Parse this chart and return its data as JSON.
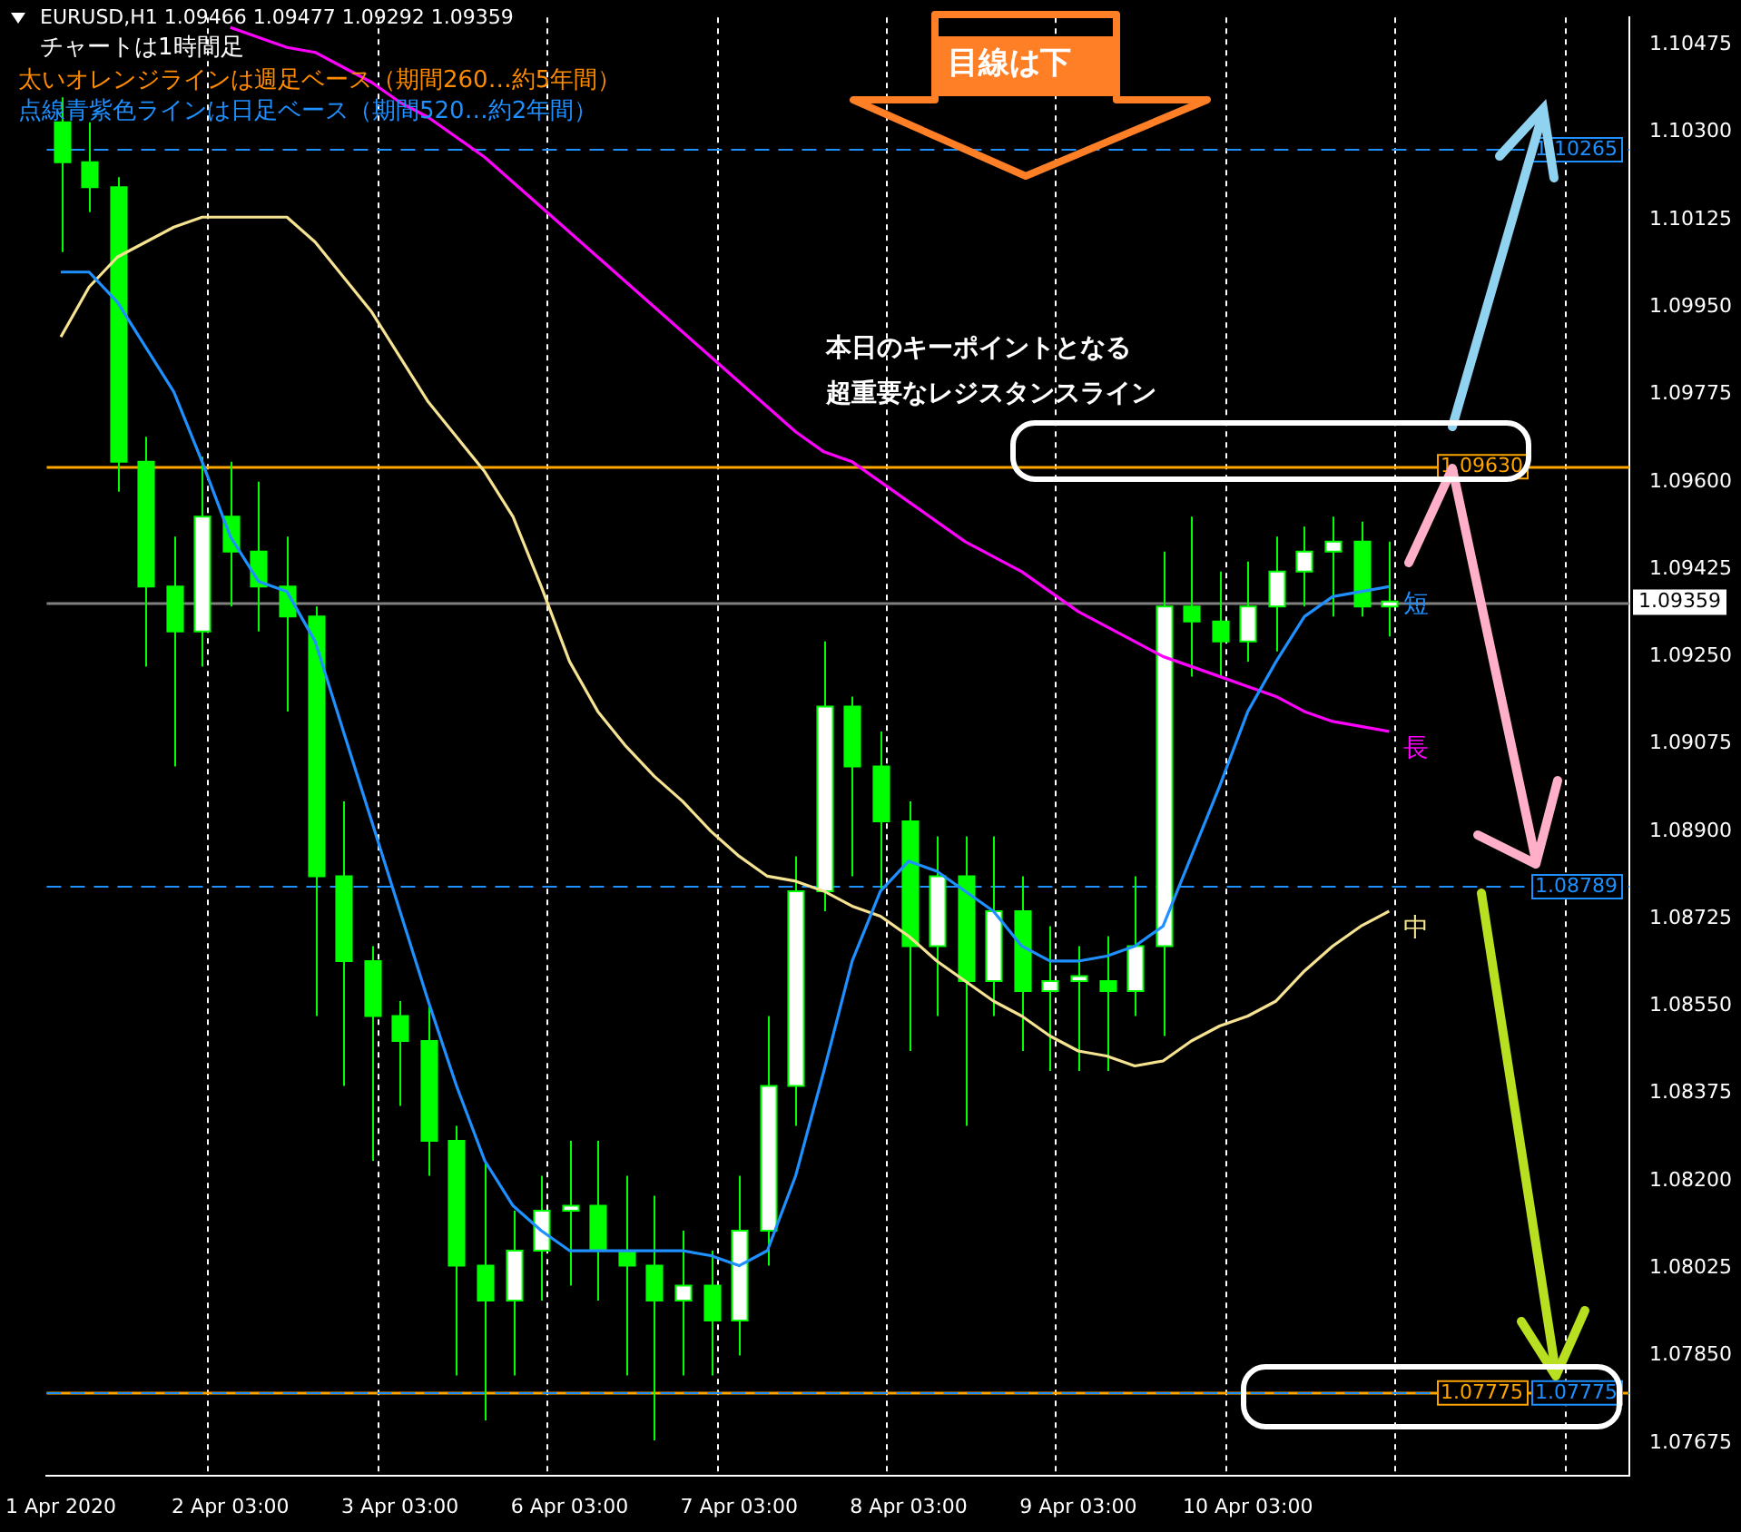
{
  "chart_data": {
    "type": "candlestick",
    "color": "#00ff00",
    "colors": [
      "#00ff00",
      "#00ff00",
      "#00ff00",
      "#00ff00",
      "#00ff00",
      "#ffffff",
      "#00ff00",
      "#00ff00",
      "#00ff00",
      "#00ff00",
      "#00ff00",
      "#00ff00",
      "#00ff00",
      "#00ff00",
      "#00ff00",
      "#00ff00",
      "#ffffff",
      "#ffffff",
      "#ffffff",
      "#00ff00",
      "#00ff00",
      "#00ff00",
      "#ffffff",
      "#00ff00",
      "#ffffff",
      "#ffffff",
      "#ffffff",
      "#ffffff",
      "#00ff00",
      "#00ff00",
      "#00ff00",
      "#ffffff",
      "#00ff00",
      "#ffffff",
      "#00ff00",
      "#ffffff",
      "#ffffff",
      "#00ff00",
      "#ffffff",
      "#ffffff",
      "#00ff00",
      "#00ff00",
      "#ffffff",
      "#ffffff",
      "#ffffff",
      "#ffffff",
      "#00ff00",
      "#ffffff",
      null,
      null,
      null,
      null,
      null,
      null,
      null,
      null
    ],
    "categories": [
      "1 Apr 2020",
      null,
      null,
      null,
      null,
      null,
      "2 Apr 03:00",
      null,
      null,
      null,
      null,
      null,
      "3 Apr 03:00",
      null,
      null,
      null,
      null,
      null,
      "6 Apr 03:00",
      null,
      null,
      null,
      null,
      null,
      "7 Apr 03:00",
      null,
      null,
      null,
      null,
      null,
      "8 Apr 03:00",
      null,
      null,
      null,
      null,
      null,
      "9 Apr 03:00",
      null,
      null,
      null,
      null,
      null,
      "10 Apr 03:00",
      null,
      null,
      null,
      null,
      null,
      null,
      null,
      null,
      null,
      null,
      null,
      null,
      null
    ],
    "ohlc": [
      [
        1.1032,
        1.1037,
        1.1006,
        1.1024
      ],
      [
        1.1024,
        1.1032,
        1.1014,
        1.1019
      ],
      [
        1.1019,
        1.1021,
        1.0958,
        1.0964
      ],
      [
        1.0964,
        1.0969,
        1.0923,
        1.0939
      ],
      [
        1.0939,
        1.0949,
        1.0903,
        1.093
      ],
      [
        1.093,
        1.0965,
        1.0923,
        1.0953
      ],
      [
        1.0953,
        1.0964,
        1.0935,
        1.0946
      ],
      [
        1.0946,
        1.096,
        1.093,
        1.0939
      ],
      [
        1.0939,
        1.0949,
        1.0914,
        1.0933
      ],
      [
        1.0933,
        1.0935,
        1.0853,
        1.0881
      ],
      [
        1.0881,
        1.0896,
        1.0839,
        1.0864
      ],
      [
        1.0864,
        1.0867,
        1.0824,
        1.0853
      ],
      [
        1.0853,
        1.0856,
        1.0835,
        1.0848
      ],
      [
        1.0848,
        1.0855,
        1.0821,
        1.0828
      ],
      [
        1.0828,
        1.0831,
        1.0781,
        1.0803
      ],
      [
        1.0803,
        1.0824,
        1.0772,
        1.0796
      ],
      [
        1.0796,
        1.0814,
        1.0781,
        1.0806
      ],
      [
        1.0806,
        1.0821,
        1.0796,
        1.0814
      ],
      [
        1.0814,
        1.0828,
        1.0799,
        1.0815
      ],
      [
        1.0815,
        1.0828,
        1.0796,
        1.0806
      ],
      [
        1.0806,
        1.0821,
        1.0781,
        1.0803
      ],
      [
        1.0803,
        1.0817,
        1.0768,
        1.0796
      ],
      [
        1.0796,
        1.081,
        1.0781,
        1.0799
      ],
      [
        1.0799,
        1.0806,
        1.0781,
        1.0792
      ],
      [
        1.0792,
        1.0821,
        1.0785,
        1.081
      ],
      [
        1.081,
        1.0853,
        1.0803,
        1.0839
      ],
      [
        1.0839,
        1.0885,
        1.0831,
        1.0878
      ],
      [
        1.0878,
        1.0928,
        1.0874,
        1.0915
      ],
      [
        1.0915,
        1.0917,
        1.0881,
        1.0903
      ],
      [
        1.0903,
        1.091,
        1.0878,
        1.0892
      ],
      [
        1.0892,
        1.0896,
        1.0846,
        1.0867
      ],
      [
        1.0867,
        1.0889,
        1.0853,
        1.0881
      ],
      [
        1.0881,
        1.0889,
        1.0831,
        1.086
      ],
      [
        1.086,
        1.0889,
        1.0853,
        1.0874
      ],
      [
        1.0874,
        1.0881,
        1.0846,
        1.0858
      ],
      [
        1.0858,
        1.0871,
        1.0842,
        1.086
      ],
      [
        1.086,
        1.0867,
        1.0842,
        1.0861
      ],
      [
        1.086,
        1.0869,
        1.0842,
        1.0858
      ],
      [
        1.0858,
        1.0881,
        1.0853,
        1.0867
      ],
      [
        1.0867,
        1.0946,
        1.0849,
        1.0935
      ],
      [
        1.0935,
        1.0953,
        1.0921,
        1.0932
      ],
      [
        1.0932,
        1.0942,
        1.0921,
        1.0928
      ],
      [
        1.0928,
        1.0944,
        1.0924,
        1.0935
      ],
      [
        1.0935,
        1.0949,
        1.0926,
        1.0942
      ],
      [
        1.0942,
        1.0951,
        1.0935,
        1.0946
      ],
      [
        1.0946,
        1.0953,
        1.0933,
        1.0948
      ],
      [
        1.0948,
        1.0952,
        1.0933,
        1.0935
      ],
      [
        1.0935,
        1.0948,
        1.0929,
        1.0936
      ],
      null,
      null,
      null,
      null,
      null,
      null,
      null,
      null
    ],
    "series": [
      {
        "name": "短",
        "type": "line",
        "color": "#1e90ff",
        "values": [
          1.1002,
          1.1002,
          1.0996,
          1.0987,
          1.0978,
          1.0964,
          1.0949,
          1.094,
          1.0938,
          1.0928,
          1.091,
          1.0892,
          1.0874,
          1.0856,
          1.0839,
          1.0824,
          1.0815,
          1.081,
          1.0806,
          1.0806,
          1.0806,
          1.0806,
          1.0806,
          1.0805,
          1.0803,
          1.0806,
          1.0821,
          1.0842,
          1.0864,
          1.0878,
          1.0884,
          1.0882,
          1.0878,
          1.0874,
          1.0867,
          1.0864,
          1.0864,
          1.0865,
          1.0867,
          1.0871,
          1.0885,
          1.0899,
          1.0914,
          1.0924,
          1.0933,
          1.0937,
          1.0938,
          1.0939,
          null,
          null,
          null,
          null,
          null,
          null,
          null,
          null
        ]
      },
      {
        "name": "長",
        "type": "line",
        "color": "#ff00ff",
        "values": [
          null,
          null,
          null,
          null,
          null,
          null,
          1.1051,
          1.1049,
          1.1047,
          1.1046,
          1.1043,
          1.104,
          1.1036,
          1.1033,
          1.1029,
          1.1025,
          1.102,
          1.1015,
          1.101,
          1.1005,
          1.1,
          1.0995,
          1.099,
          1.0985,
          1.098,
          1.0975,
          1.097,
          1.0966,
          1.0964,
          1.096,
          1.0956,
          1.0952,
          1.0948,
          1.0945,
          1.0942,
          1.0938,
          1.0934,
          1.0931,
          1.0928,
          1.0925,
          1.0923,
          1.0921,
          1.0919,
          1.0917,
          1.0914,
          1.0912,
          1.0911,
          1.091,
          null,
          null,
          null,
          null,
          null,
          null,
          null,
          null
        ]
      },
      {
        "name": "中",
        "type": "line",
        "color": "#f5e391",
        "values": [
          1.0989,
          1.0999,
          1.1005,
          1.1008,
          1.1011,
          1.1013,
          1.1013,
          1.1013,
          1.1013,
          1.1008,
          1.1001,
          1.0994,
          1.0985,
          1.0976,
          1.0969,
          1.0962,
          1.0953,
          1.0939,
          1.0924,
          1.0914,
          1.0907,
          1.0901,
          1.0896,
          1.089,
          1.0885,
          1.0881,
          1.088,
          1.0878,
          1.0875,
          1.0873,
          1.0869,
          1.0864,
          1.086,
          1.0856,
          1.0853,
          1.0849,
          1.0846,
          1.0845,
          1.0843,
          1.0844,
          1.0848,
          1.0851,
          1.0853,
          1.0856,
          1.0862,
          1.0867,
          1.0871,
          1.0874,
          null,
          null,
          null,
          null,
          null,
          null,
          null,
          null
        ]
      }
    ],
    "ylim": [
      1.0761,
      1.1053
    ],
    "yticks": [
      1.07675,
      {
        "value": 1.0785,
        "label": "1.07850"
      },
      1.08025,
      {
        "value": 1.082,
        "label": "1.08200"
      },
      1.08375,
      {
        "value": 1.0855,
        "label": "1.08550"
      },
      1.08725,
      {
        "value": 1.089,
        "label": "1.08900"
      },
      1.09075,
      {
        "value": 1.0925,
        "label": "1.09250"
      },
      1.09425,
      {
        "value": 1.096,
        "label": "1.09600"
      },
      1.09775,
      {
        "value": 1.0995,
        "label": "1.09950"
      },
      1.10125,
      {
        "value": 1.103,
        "label": "1.10300"
      },
      1.10475
    ],
    "grid": "x",
    "marker": "none",
    "line_style": "solid",
    "ref_lines": [
      {
        "axis": "y",
        "value": 1.0963,
        "label": "1.09630",
        "color": "#ffa500",
        "line_style": "solid"
      },
      {
        "axis": "y",
        "value": 1.10265,
        "label": "1.10265",
        "color": "#1e90ff",
        "line_style": "dashed"
      },
      {
        "axis": "y",
        "value": 1.08789,
        "label": "1.08789",
        "color": "#1e90ff",
        "line_style": "dashed"
      },
      {
        "axis": "y",
        "value": 1.07775,
        "label": "1.07775",
        "color": "#ffa500",
        "line_style": "solid"
      },
      {
        "axis": "y",
        "value": 1.07775,
        "label": "1.07775",
        "color": "#1e90ff",
        "line_style": "dashed"
      },
      {
        "axis": "y",
        "value": 1.09359,
        "label": "1.09359",
        "color": "#808080",
        "line_style": "solid"
      }
    ],
    "annotations": [
      "EURUSD,H1  1.09466 1.09477 1.09292 1.09359",
      "チャートは1時間足",
      "太いオレンジラインは週足ベース（期間260…約5年間）",
      "点線青紫色ラインは日足ベース（期間520…約2年間）",
      "目線は下",
      "本日のキーポイントとなる",
      "超重要なレジスタンスライン"
    ]
  }
}
